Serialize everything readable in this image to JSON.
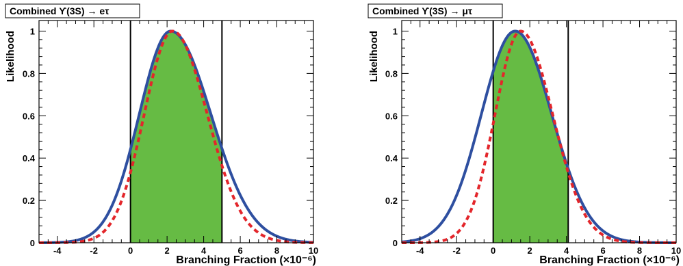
{
  "chart_data": [
    {
      "type": "line",
      "title": "Combined ϒ(3S) → eτ",
      "xlabel": "Branching Fraction (×10⁻⁶)",
      "ylabel": "Likelihood",
      "xlim": [
        -5,
        10
      ],
      "ylim": [
        0,
        1.05
      ],
      "xticks": [
        -4,
        -2,
        0,
        2,
        4,
        6,
        8,
        10
      ],
      "yticks": [
        0,
        0.2,
        0.4,
        0.6,
        0.8,
        1
      ],
      "grid": false,
      "colors": {
        "solid": "#2e4fa0",
        "dashed": "#e3262b",
        "band": "#66bb44"
      },
      "interval": [
        0,
        5
      ],
      "series": [
        {
          "style": "solid",
          "peak_x": 2.2,
          "sigma_left": 1.72,
          "sigma_right": 2.2,
          "peak_y": 1.0
        },
        {
          "style": "dashed",
          "peak_x": 2.3,
          "sigma_left": 1.55,
          "sigma_right": 1.9,
          "peak_y": 1.0
        }
      ]
    },
    {
      "type": "line",
      "title": "Combined ϒ(3S) → μτ",
      "xlabel": "Branching Fraction (×10⁻⁶)",
      "ylabel": "Likelihood",
      "xlim": [
        -5,
        10
      ],
      "ylim": [
        0,
        1.05
      ],
      "xticks": [
        -4,
        -2,
        0,
        2,
        4,
        6,
        8,
        10
      ],
      "yticks": [
        0,
        0.2,
        0.4,
        0.6,
        0.8,
        1
      ],
      "grid": false,
      "colors": {
        "solid": "#2e4fa0",
        "dashed": "#e3262b",
        "band": "#66bb44"
      },
      "interval": [
        0,
        4.1
      ],
      "series": [
        {
          "style": "solid",
          "peak_x": 1.2,
          "sigma_left": 1.85,
          "sigma_right": 2.0,
          "peak_y": 1.0
        },
        {
          "style": "dashed",
          "peak_x": 1.5,
          "sigma_left": 1.4,
          "sigma_right": 1.75,
          "peak_y": 1.0
        }
      ]
    }
  ]
}
